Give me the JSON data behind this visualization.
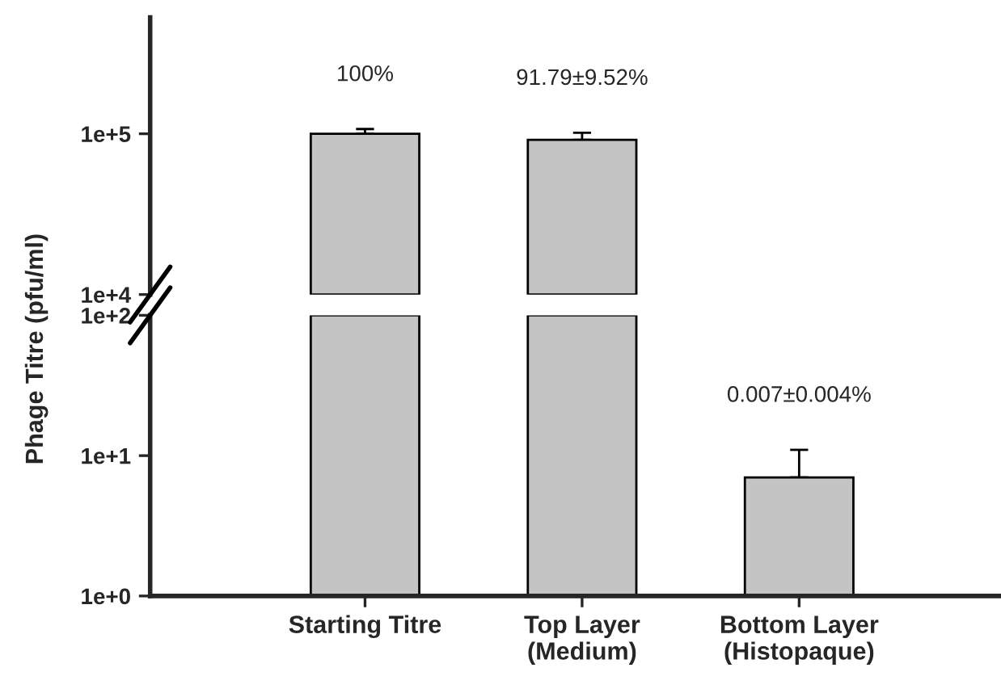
{
  "chart_data": [
    {
      "type": "bar",
      "tick_labels": "y",
      "log": true,
      "grid": false,
      "values": [
        100000,
        91790,
        null
      ],
      "errors": [
        7000,
        9520,
        null
      ],
      "color": "#c4c4c4",
      "ylim": [
        10000,
        530000
      ],
      "yticks": [
        {
          "value": 10000,
          "label": "1e+4"
        },
        {
          "value": 100000,
          "label": "1e+5"
        }
      ],
      "annotations": [
        "100%",
        "91.79±9.52%"
      ]
    },
    {
      "type": "bar",
      "categories": [
        "Starting Titre",
        "Top Layer\n(Medium)",
        "Bottom Layer\n(Histopaque)"
      ],
      "log": true,
      "grid": false,
      "ylabel": "Phage Titre (pfu/ml)",
      "values": [
        100,
        100,
        7
      ],
      "errors": [
        null,
        null,
        4
      ],
      "color": "#c4c4c4",
      "ylim": [
        1,
        100
      ],
      "yticks": [
        {
          "value": 1,
          "label": "1e+0"
        },
        {
          "value": 10,
          "label": "1e+1"
        },
        {
          "value": 100,
          "label": "1e+2"
        }
      ],
      "annotations": [
        "0.007±0.004%"
      ]
    }
  ]
}
